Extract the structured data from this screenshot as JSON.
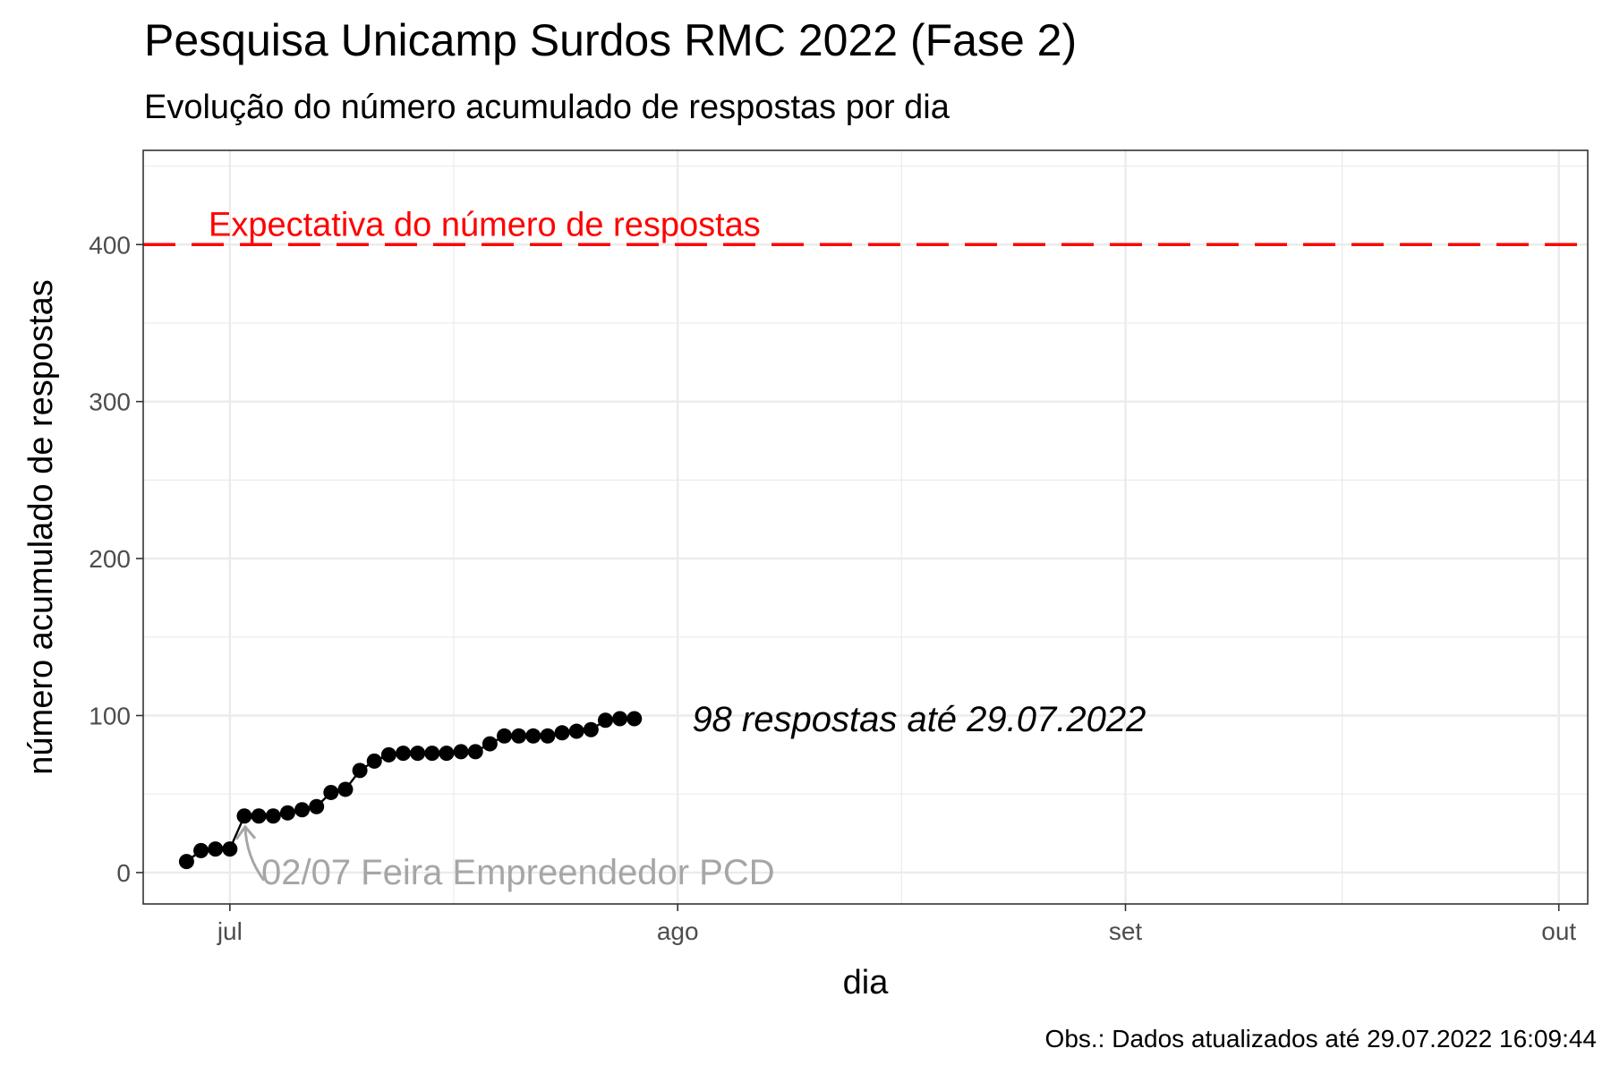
{
  "chart_data": {
    "type": "scatter",
    "title": "Pesquisa Unicamp Surdos RMC 2022 (Fase 2)",
    "subtitle": "Evolução do número acumulado de respostas por dia",
    "xlabel": "dia",
    "ylabel": "número acumulado de respostas",
    "caption": "Obs.: Dados atualizados até 29.07.2022 16:09:44",
    "xlim": [
      "2022-06-25",
      "2022-10-03"
    ],
    "ylim": [
      -20,
      460
    ],
    "x_ticks": [
      {
        "date": "2022-07-01",
        "label": "jul"
      },
      {
        "date": "2022-08-01",
        "label": "ago"
      },
      {
        "date": "2022-09-01",
        "label": "set"
      },
      {
        "date": "2022-10-01",
        "label": "out"
      }
    ],
    "y_ticks": [
      0,
      100,
      200,
      300,
      400
    ],
    "grid": true,
    "series": [
      {
        "color": "#000000",
        "points": [
          [
            "2022-06-28",
            7
          ],
          [
            "2022-06-29",
            14
          ],
          [
            "2022-06-30",
            15
          ],
          [
            "2022-07-01",
            15
          ],
          [
            "2022-07-02",
            36
          ],
          [
            "2022-07-03",
            36
          ],
          [
            "2022-07-04",
            36
          ],
          [
            "2022-07-05",
            38
          ],
          [
            "2022-07-06",
            40
          ],
          [
            "2022-07-07",
            42
          ],
          [
            "2022-07-08",
            51
          ],
          [
            "2022-07-09",
            53
          ],
          [
            "2022-07-10",
            65
          ],
          [
            "2022-07-11",
            71
          ],
          [
            "2022-07-12",
            75
          ],
          [
            "2022-07-13",
            76
          ],
          [
            "2022-07-14",
            76
          ],
          [
            "2022-07-15",
            76
          ],
          [
            "2022-07-16",
            76
          ],
          [
            "2022-07-17",
            77
          ],
          [
            "2022-07-18",
            77
          ],
          [
            "2022-07-19",
            82
          ],
          [
            "2022-07-20",
            87
          ],
          [
            "2022-07-21",
            87
          ],
          [
            "2022-07-22",
            87
          ],
          [
            "2022-07-23",
            87
          ],
          [
            "2022-07-24",
            89
          ],
          [
            "2022-07-25",
            90
          ],
          [
            "2022-07-26",
            91
          ],
          [
            "2022-07-27",
            97
          ],
          [
            "2022-07-28",
            98
          ],
          [
            "2022-07-29",
            98
          ]
        ]
      }
    ],
    "reference_line": {
      "y": 400,
      "label": "Expectativa do número de respostas",
      "color": "#ff0000",
      "style": "dashed"
    },
    "annotations": {
      "end_label": {
        "text": "98 respostas até 29.07.2022",
        "x": "2022-08-02",
        "y": 98
      },
      "event": {
        "text": "02/07 Feira Empreendedor PCD",
        "x": "2022-07-02",
        "y": 36,
        "color": "#a6a6a6"
      }
    }
  }
}
